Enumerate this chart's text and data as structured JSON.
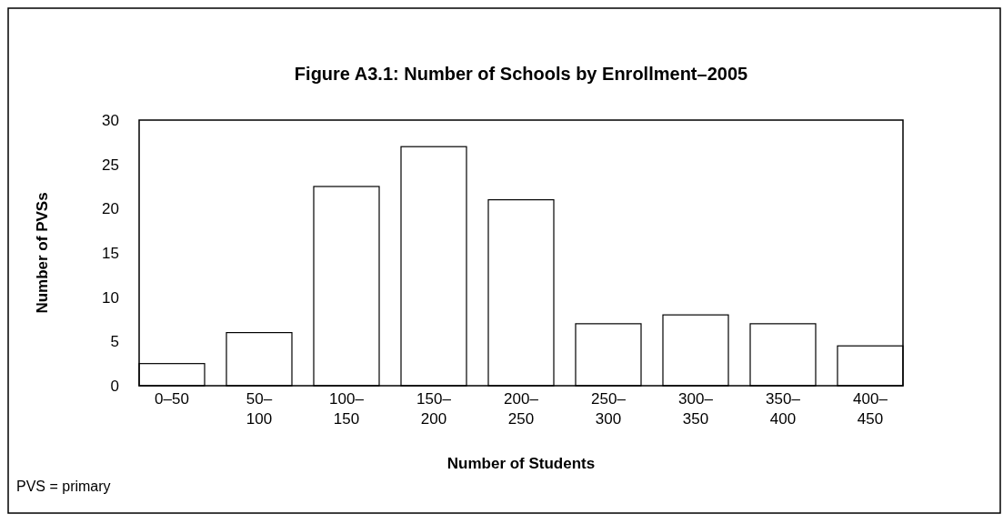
{
  "chart_data": {
    "type": "bar",
    "title": "Figure A3.1: Number of Schools by Enrollment–2005",
    "xlabel": "Number of Students",
    "ylabel": "Number of PVSs",
    "categories": [
      "0–50",
      "50–100",
      "100–150",
      "150–200",
      "200–250",
      "250–300",
      "300–350",
      "350–400",
      "400–450"
    ],
    "values": [
      2.5,
      6,
      22.5,
      27,
      21,
      7,
      8,
      7,
      4.5
    ],
    "color": "#ffffff",
    "ylim": [
      0,
      30
    ],
    "yticks": [
      0,
      5,
      10,
      15,
      20,
      25,
      30
    ],
    "grid": false,
    "annotations": [
      "PVS = primary"
    ]
  }
}
